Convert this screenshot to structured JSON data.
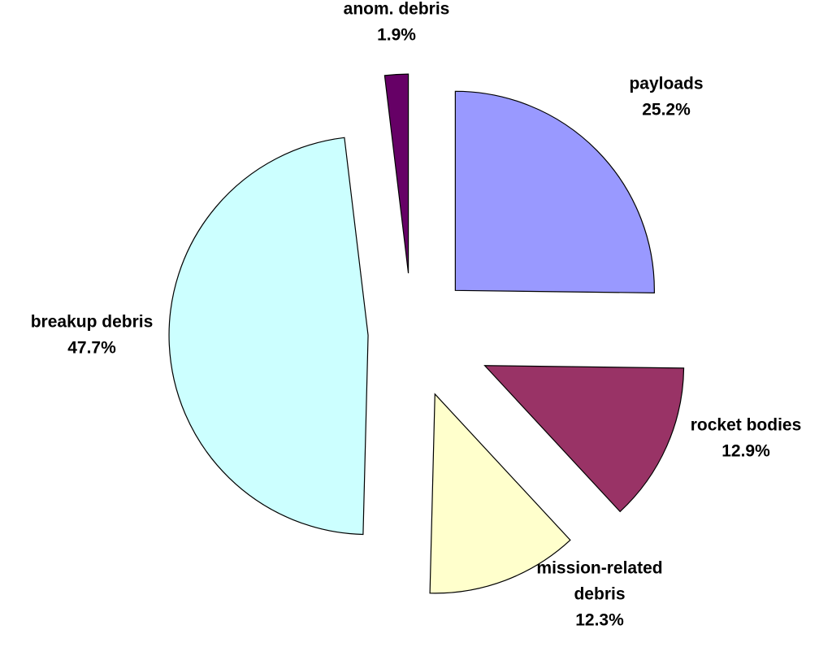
{
  "chart_data": {
    "type": "pie",
    "slices": [
      {
        "label": "payloads",
        "value": 25.2,
        "value_text": "25.2%",
        "color": "#9999ff"
      },
      {
        "label": "rocket bodies",
        "value": 12.9,
        "value_text": "12.9%",
        "color": "#993366"
      },
      {
        "label": "mission-related debris",
        "label_lines": [
          "mission-related",
          "debris"
        ],
        "value": 12.3,
        "value_text": "12.3%",
        "color": "#ffffcc"
      },
      {
        "label": "breakup debris",
        "value": 47.7,
        "value_text": "47.7%",
        "color": "#ccffff"
      },
      {
        "label": "anom. debris",
        "value": 1.9,
        "value_text": "1.9%",
        "color": "#660066"
      }
    ],
    "exploded": true,
    "legend": "none"
  }
}
